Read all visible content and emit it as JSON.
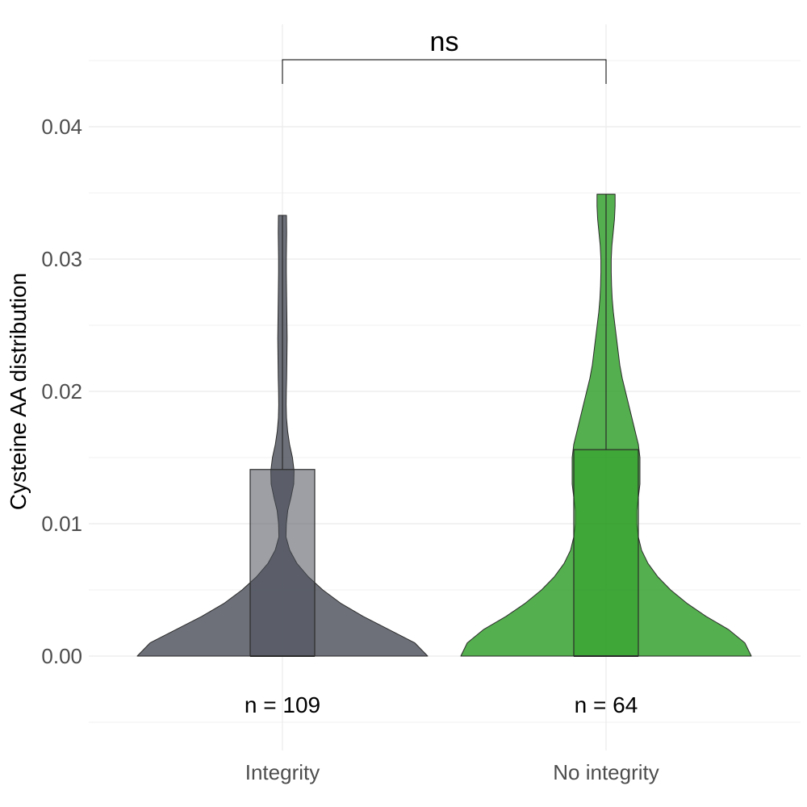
{
  "chart_data": {
    "type": "violin",
    "title": "",
    "xlabel": "",
    "ylabel": "Cysteine AA distribution",
    "ylim": [
      -0.005,
      0.0445
    ],
    "y_ticks": [
      0.0,
      0.01,
      0.02,
      0.03,
      0.04
    ],
    "y_tick_labels": [
      "0.00",
      "0.01",
      "0.02",
      "0.03",
      "0.04"
    ],
    "grid": true,
    "legend": "none",
    "categories": [
      "Integrity",
      "No integrity"
    ],
    "series": [
      {
        "category": "Integrity",
        "n_label": "n = 109",
        "color": "#4d505b",
        "box": {
          "min": 0.0,
          "q1": 0.0,
          "median": 0.0,
          "q3": 0.0141,
          "max": 0.0333
        },
        "density": [
          [
            0.0,
            0.9
          ],
          [
            0.001,
            0.82
          ],
          [
            0.002,
            0.66
          ],
          [
            0.003,
            0.5
          ],
          [
            0.004,
            0.36
          ],
          [
            0.005,
            0.25
          ],
          [
            0.006,
            0.16
          ],
          [
            0.007,
            0.09
          ],
          [
            0.008,
            0.045
          ],
          [
            0.009,
            0.022
          ],
          [
            0.01,
            0.024
          ],
          [
            0.011,
            0.033
          ],
          [
            0.012,
            0.053
          ],
          [
            0.013,
            0.07
          ],
          [
            0.014,
            0.072
          ],
          [
            0.015,
            0.062
          ],
          [
            0.016,
            0.044
          ],
          [
            0.017,
            0.032
          ],
          [
            0.018,
            0.025
          ],
          [
            0.019,
            0.023
          ],
          [
            0.02,
            0.024
          ],
          [
            0.021,
            0.026
          ],
          [
            0.022,
            0.027
          ],
          [
            0.023,
            0.028
          ],
          [
            0.024,
            0.029
          ],
          [
            0.025,
            0.028
          ],
          [
            0.026,
            0.027
          ],
          [
            0.027,
            0.026
          ],
          [
            0.028,
            0.025
          ],
          [
            0.029,
            0.024
          ],
          [
            0.03,
            0.024
          ],
          [
            0.031,
            0.025
          ],
          [
            0.032,
            0.026
          ],
          [
            0.0333,
            0.025
          ]
        ]
      },
      {
        "category": "No integrity",
        "n_label": "n = 64",
        "color": "#2e9e27",
        "box": {
          "min": 0.0,
          "q1": 0.0,
          "median": 0.0,
          "q3": 0.0156,
          "max": 0.0349
        },
        "density": [
          [
            0.0,
            0.9
          ],
          [
            0.001,
            0.86
          ],
          [
            0.002,
            0.76
          ],
          [
            0.003,
            0.62
          ],
          [
            0.004,
            0.5
          ],
          [
            0.005,
            0.4
          ],
          [
            0.006,
            0.32
          ],
          [
            0.007,
            0.26
          ],
          [
            0.008,
            0.22
          ],
          [
            0.009,
            0.2
          ],
          [
            0.01,
            0.19
          ],
          [
            0.011,
            0.19
          ],
          [
            0.012,
            0.2
          ],
          [
            0.013,
            0.21
          ],
          [
            0.014,
            0.21
          ],
          [
            0.015,
            0.21
          ],
          [
            0.016,
            0.2
          ],
          [
            0.017,
            0.18
          ],
          [
            0.018,
            0.16
          ],
          [
            0.019,
            0.14
          ],
          [
            0.02,
            0.12
          ],
          [
            0.021,
            0.1
          ],
          [
            0.022,
            0.085
          ],
          [
            0.023,
            0.075
          ],
          [
            0.024,
            0.065
          ],
          [
            0.025,
            0.055
          ],
          [
            0.026,
            0.045
          ],
          [
            0.027,
            0.038
          ],
          [
            0.028,
            0.034
          ],
          [
            0.029,
            0.032
          ],
          [
            0.03,
            0.032
          ],
          [
            0.031,
            0.036
          ],
          [
            0.032,
            0.044
          ],
          [
            0.033,
            0.052
          ],
          [
            0.034,
            0.056
          ],
          [
            0.0349,
            0.056
          ]
        ]
      }
    ],
    "significance": {
      "label": "ns",
      "pair": [
        "Integrity",
        "No integrity"
      ]
    }
  }
}
